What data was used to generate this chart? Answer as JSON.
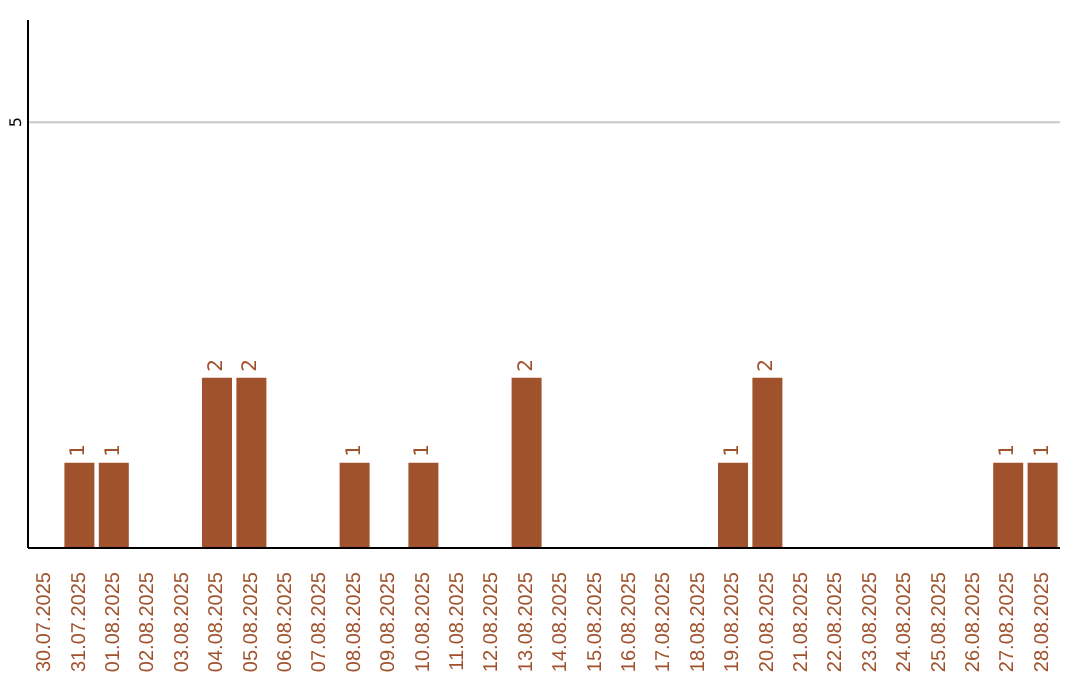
{
  "chart_data": {
    "type": "bar",
    "categories": [
      "30.07.2025",
      "31.07.2025",
      "01.08.2025",
      "02.08.2025",
      "03.08.2025",
      "04.08.2025",
      "05.08.2025",
      "06.08.2025",
      "07.08.2025",
      "08.08.2025",
      "09.08.2025",
      "10.08.2025",
      "11.08.2025",
      "12.08.2025",
      "13.08.2025",
      "14.08.2025",
      "15.08.2025",
      "16.08.2025",
      "17.08.2025",
      "18.08.2025",
      "19.08.2025",
      "20.08.2025",
      "21.08.2025",
      "22.08.2025",
      "23.08.2025",
      "24.08.2025",
      "25.08.2025",
      "26.08.2025",
      "27.08.2025",
      "28.08.2025"
    ],
    "values": [
      0,
      1,
      1,
      0,
      0,
      2,
      2,
      0,
      0,
      1,
      0,
      1,
      0,
      0,
      2,
      0,
      0,
      0,
      0,
      0,
      1,
      2,
      0,
      0,
      0,
      0,
      0,
      0,
      1,
      1
    ],
    "value_labels": [
      null,
      "1",
      "1",
      null,
      null,
      "2",
      "2",
      null,
      null,
      "1",
      null,
      "1",
      null,
      null,
      "2",
      null,
      null,
      null,
      null,
      null,
      "1",
      "2",
      null,
      null,
      null,
      null,
      null,
      null,
      "1",
      "1"
    ],
    "color": "#a0522d",
    "ylim": [
      0,
      6.2
    ],
    "yticks": [
      5
    ],
    "grid": "y"
  }
}
